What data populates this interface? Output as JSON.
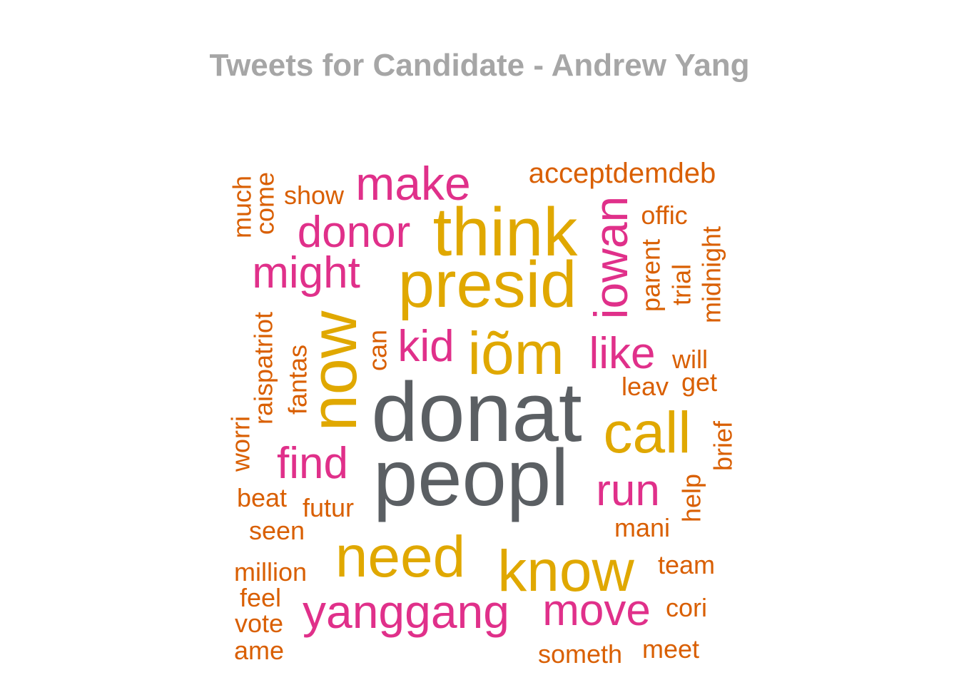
{
  "chart_data": {
    "type": "wordcloud",
    "title": "Tweets for Candidate - Andrew Yang",
    "colors": {
      "gray": "#5b5f63",
      "gold": "#e0a800",
      "pink": "#e0308a",
      "orange": "#d95f02"
    },
    "words": [
      {
        "text": "donat",
        "color": "gray"
      },
      {
        "text": "peopl",
        "color": "gray"
      },
      {
        "text": "think",
        "color": "gold"
      },
      {
        "text": "presid",
        "color": "gold"
      },
      {
        "text": "now",
        "color": "gold"
      },
      {
        "text": "iõm",
        "color": "gold"
      },
      {
        "text": "call",
        "color": "gold"
      },
      {
        "text": "need",
        "color": "gold"
      },
      {
        "text": "know",
        "color": "gold"
      },
      {
        "text": "make",
        "color": "pink"
      },
      {
        "text": "donor",
        "color": "pink"
      },
      {
        "text": "might",
        "color": "pink"
      },
      {
        "text": "iowan",
        "color": "pink"
      },
      {
        "text": "kid",
        "color": "pink"
      },
      {
        "text": "like",
        "color": "pink"
      },
      {
        "text": "find",
        "color": "pink"
      },
      {
        "text": "run",
        "color": "pink"
      },
      {
        "text": "yanggang",
        "color": "pink"
      },
      {
        "text": "move",
        "color": "pink"
      },
      {
        "text": "acceptdemdeb",
        "color": "orange"
      },
      {
        "text": "show",
        "color": "orange"
      },
      {
        "text": "much",
        "color": "orange"
      },
      {
        "text": "come",
        "color": "orange"
      },
      {
        "text": "offic",
        "color": "orange"
      },
      {
        "text": "parent",
        "color": "orange"
      },
      {
        "text": "trial",
        "color": "orange"
      },
      {
        "text": "midnight",
        "color": "orange"
      },
      {
        "text": "raispatriot",
        "color": "orange"
      },
      {
        "text": "fantas",
        "color": "orange"
      },
      {
        "text": "can",
        "color": "orange"
      },
      {
        "text": "will",
        "color": "orange"
      },
      {
        "text": "leav",
        "color": "orange"
      },
      {
        "text": "get",
        "color": "orange"
      },
      {
        "text": "worri",
        "color": "orange"
      },
      {
        "text": "brief",
        "color": "orange"
      },
      {
        "text": "beat",
        "color": "orange"
      },
      {
        "text": "futur",
        "color": "orange"
      },
      {
        "text": "help",
        "color": "orange"
      },
      {
        "text": "seen",
        "color": "orange"
      },
      {
        "text": "mani",
        "color": "orange"
      },
      {
        "text": "million",
        "color": "orange"
      },
      {
        "text": "team",
        "color": "orange"
      },
      {
        "text": "feel",
        "color": "orange"
      },
      {
        "text": "vote",
        "color": "orange"
      },
      {
        "text": "cori",
        "color": "orange"
      },
      {
        "text": "ame",
        "color": "orange"
      },
      {
        "text": "someth",
        "color": "orange"
      },
      {
        "text": "meet",
        "color": "orange"
      }
    ]
  }
}
